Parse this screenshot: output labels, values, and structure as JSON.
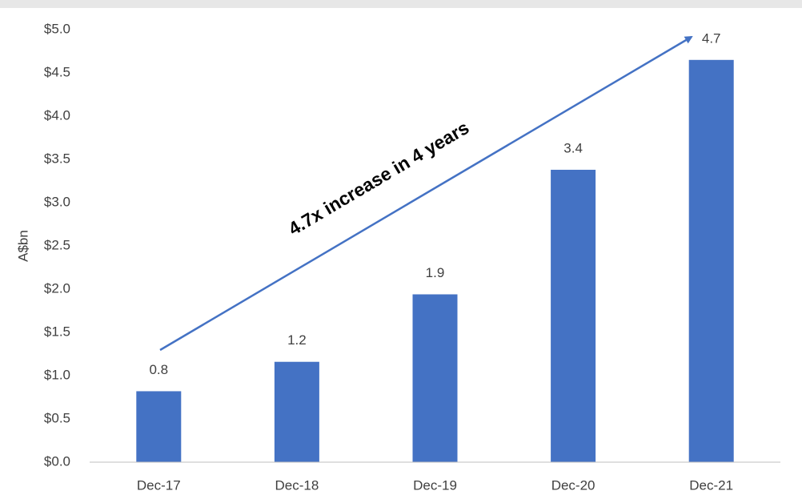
{
  "chart_data": {
    "type": "bar",
    "y_label": "A$bn",
    "annotation": "4.7x increase in 4 years",
    "categories": [
      "Dec-17",
      "Dec-18",
      "Dec-19",
      "Dec-20",
      "Dec-21"
    ],
    "values": [
      0.82,
      1.16,
      1.94,
      3.38,
      4.65
    ],
    "value_labels": [
      "0.8",
      "1.2",
      "1.9",
      "3.4",
      "4.7"
    ],
    "color": "#4472c4",
    "ylim": [
      0,
      5
    ],
    "yticks": [
      {
        "value": 0,
        "label": "$0.0"
      },
      {
        "value": 0.5,
        "label": "$0.5"
      },
      {
        "value": 1,
        "label": "$1.0"
      },
      {
        "value": 1.5,
        "label": "$1.5"
      },
      {
        "value": 2,
        "label": "$2.0"
      },
      {
        "value": 2.5,
        "label": "$2.5"
      },
      {
        "value": 3,
        "label": "$3.0"
      },
      {
        "value": 3.5,
        "label": "$3.5"
      },
      {
        "value": 4,
        "label": "$4.0"
      },
      {
        "value": 4.5,
        "label": "$4.5"
      },
      {
        "value": 5,
        "label": "$5.0"
      }
    ],
    "grid": false
  }
}
